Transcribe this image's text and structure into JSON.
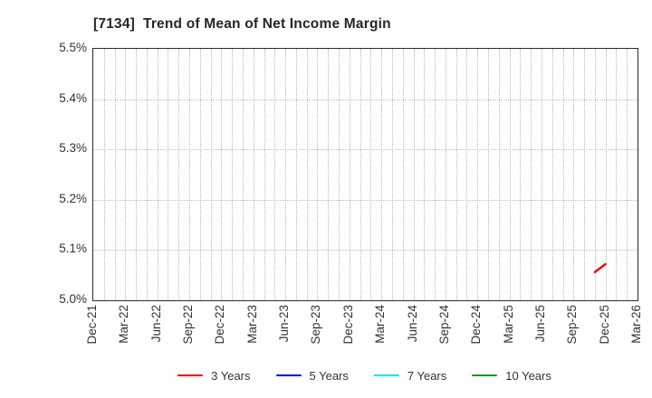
{
  "figure": {
    "title": "[7134]  Trend of Mean of Net Income Margin"
  },
  "chart_data": {
    "type": "line",
    "title": "[7134]  Trend of Mean of Net Income Margin",
    "x_axis": {
      "unit": "month",
      "start_label": "Dec-21",
      "end_label": "Mar-26",
      "total_month_span": 51,
      "grid": "monthly-dotted",
      "ticks": [
        {
          "label": "Dec-21",
          "month_index": 0
        },
        {
          "label": "Mar-22",
          "month_index": 3
        },
        {
          "label": "Jun-22",
          "month_index": 6
        },
        {
          "label": "Sep-22",
          "month_index": 9
        },
        {
          "label": "Dec-22",
          "month_index": 12
        },
        {
          "label": "Mar-23",
          "month_index": 15
        },
        {
          "label": "Jun-23",
          "month_index": 18
        },
        {
          "label": "Sep-23",
          "month_index": 21
        },
        {
          "label": "Dec-23",
          "month_index": 24
        },
        {
          "label": "Mar-24",
          "month_index": 27
        },
        {
          "label": "Jun-24",
          "month_index": 30
        },
        {
          "label": "Sep-24",
          "month_index": 33
        },
        {
          "label": "Dec-24",
          "month_index": 36
        },
        {
          "label": "Mar-25",
          "month_index": 39
        },
        {
          "label": "Jun-25",
          "month_index": 42
        },
        {
          "label": "Sep-25",
          "month_index": 45
        },
        {
          "label": "Dec-25",
          "month_index": 48
        },
        {
          "label": "Mar-26",
          "month_index": 51
        }
      ]
    },
    "y_axis": {
      "min": 5.0,
      "max": 5.5,
      "step": 0.1,
      "format": "percent",
      "grid": "dotted",
      "ticks": [
        {
          "label": "5.0%",
          "value": 5.0
        },
        {
          "label": "5.1%",
          "value": 5.1
        },
        {
          "label": "5.2%",
          "value": 5.2
        },
        {
          "label": "5.3%",
          "value": 5.3
        },
        {
          "label": "5.4%",
          "value": 5.4
        },
        {
          "label": "5.5%",
          "value": 5.5
        }
      ]
    },
    "series": [
      {
        "name": "3 Years",
        "color": "#ee0000",
        "points": [
          {
            "label": "Nov-25",
            "month_index": 47,
            "value": 5.056
          },
          {
            "label": "Dec-25",
            "month_index": 48,
            "value": 5.072
          }
        ]
      },
      {
        "name": "5 Years",
        "color": "#0000ee",
        "points": []
      },
      {
        "name": "7 Years",
        "color": "#00e8e8",
        "points": []
      },
      {
        "name": "10 Years",
        "color": "#0c9613",
        "points": []
      }
    ],
    "legend_position": "bottom-center",
    "grid_on": true
  },
  "colors": {
    "background": "#ffffff",
    "axis_border": "#2b2b2b",
    "gridline": "#b9b9b9",
    "tick_label": "#333333",
    "title": "#262626"
  }
}
